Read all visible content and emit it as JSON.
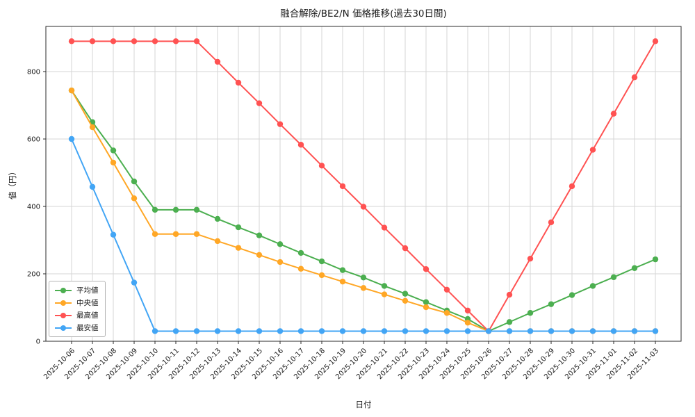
{
  "chart_data": {
    "type": "line",
    "title": "融合解除/BE2/N 価格推移(過去30日間)",
    "xlabel": "日付",
    "ylabel": "値（円）",
    "ylim": [
      0,
      934
    ],
    "yticks": [
      0,
      200,
      400,
      600,
      800
    ],
    "grid": true,
    "legend_position": "lower left",
    "x": [
      "2025-10-06",
      "2025-10-07",
      "2025-10-08",
      "2025-10-09",
      "2025-10-10",
      "2025-10-11",
      "2025-10-12",
      "2025-10-13",
      "2025-10-14",
      "2025-10-15",
      "2025-10-16",
      "2025-10-17",
      "2025-10-18",
      "2025-10-19",
      "2025-10-20",
      "2025-10-21",
      "2025-10-22",
      "2025-10-23",
      "2025-10-24",
      "2025-10-25",
      "2025-10-26",
      "2025-10-27",
      "2025-10-28",
      "2025-10-29",
      "2025-10-30",
      "2025-10-31",
      "2025-11-01",
      "2025-11-02",
      "2025-11-03"
    ],
    "series": [
      {
        "name": "平均値",
        "color": "#4caf50",
        "values": [
          744,
          650,
          566,
          474,
          390,
          390,
          390,
          363,
          338,
          314,
          288,
          262,
          237,
          211,
          189,
          164,
          141,
          116,
          91,
          66,
          30,
          57,
          84,
          110,
          137,
          164,
          190,
          217,
          243
        ]
      },
      {
        "name": "中央値",
        "color": "#ffa726",
        "values": [
          744,
          635,
          530,
          424,
          318,
          318,
          318,
          297,
          277,
          256,
          235,
          215,
          196,
          177,
          158,
          139,
          120,
          101,
          84,
          55,
          30,
          30,
          30,
          30,
          30,
          30,
          30,
          30,
          30
        ]
      },
      {
        "name": "最高値",
        "color": "#ff5252",
        "values": [
          890,
          890,
          890,
          890,
          890,
          890,
          890,
          829,
          767,
          706,
          644,
          583,
          521,
          460,
          399,
          337,
          276,
          214,
          153,
          91,
          30,
          138,
          245,
          353,
          460,
          568,
          675,
          783,
          890
        ]
      },
      {
        "name": "最安値",
        "color": "#42a5f5",
        "values": [
          600,
          458,
          316,
          174,
          30,
          30,
          30,
          30,
          30,
          30,
          30,
          30,
          30,
          30,
          30,
          30,
          30,
          30,
          30,
          30,
          30,
          30,
          30,
          30,
          30,
          30,
          30,
          30,
          30
        ]
      }
    ]
  }
}
